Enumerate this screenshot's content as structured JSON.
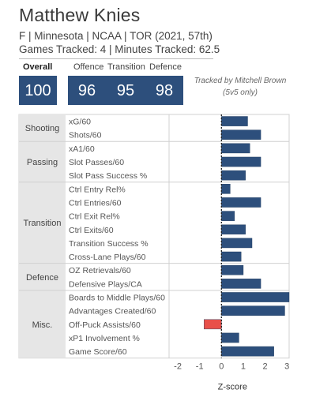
{
  "header": {
    "name": "Matthew Knies",
    "info": "F | Minnesota | NCAA | TOR (2021, 57th)",
    "tracked": "Games Tracked: 4 | Minutes Tracked: 62.5",
    "credit_line1": "Tracked by Mitchell Brown",
    "credit_line2": "(5v5 only)"
  },
  "scores": {
    "overall_label": "Overall",
    "overall": "100",
    "offence_label": "Offence",
    "offence": "96",
    "transition_label": "Transition",
    "transition": "95",
    "defence_label": "Defence",
    "defence": "98"
  },
  "colors": {
    "positive": "#2d4f7c",
    "negative": "#e8504a",
    "category_bg": "#e6e6e6"
  },
  "chart_data": {
    "type": "bar",
    "orientation": "horizontal",
    "xlabel": "Z-score",
    "xlim": [
      -2.4,
      3.1
    ],
    "xticks": [
      -2,
      -1,
      0,
      1,
      2,
      3
    ],
    "groups": [
      {
        "name": "Shooting",
        "metrics": [
          {
            "label": "xG/60",
            "value": 1.2
          },
          {
            "label": "Shots/60",
            "value": 1.8
          }
        ]
      },
      {
        "name": "Passing",
        "metrics": [
          {
            "label": "xA1/60",
            "value": 1.3
          },
          {
            "label": "Slot Passes/60",
            "value": 1.8
          },
          {
            "label": "Slot Pass Success %",
            "value": 1.1
          }
        ]
      },
      {
        "name": "Transition",
        "metrics": [
          {
            "label": "Ctrl Entry Rel%",
            "value": 0.4
          },
          {
            "label": "Ctrl Entries/60",
            "value": 1.8
          },
          {
            "label": "Ctrl Exit Rel%",
            "value": 0.6
          },
          {
            "label": "Ctrl Exits/60",
            "value": 1.1
          },
          {
            "label": "Transition Success %",
            "value": 1.4
          },
          {
            "label": "Cross-Lane Plays/60",
            "value": 0.9
          }
        ]
      },
      {
        "name": "Defence",
        "metrics": [
          {
            "label": "OZ Retrievals/60",
            "value": 1.0
          },
          {
            "label": "Defensive Plays/CA",
            "value": 1.8
          }
        ]
      },
      {
        "name": "Misc.",
        "metrics": [
          {
            "label": "Boards to Middle Plays/60",
            "value": 3.1
          },
          {
            "label": "Advantages Created/60",
            "value": 2.9
          },
          {
            "label": "Off-Puck Assists/60",
            "value": -0.8
          },
          {
            "label": "xP1 Involvement %",
            "value": 0.8
          },
          {
            "label": "Game Score/60",
            "value": 2.4
          }
        ]
      }
    ]
  }
}
